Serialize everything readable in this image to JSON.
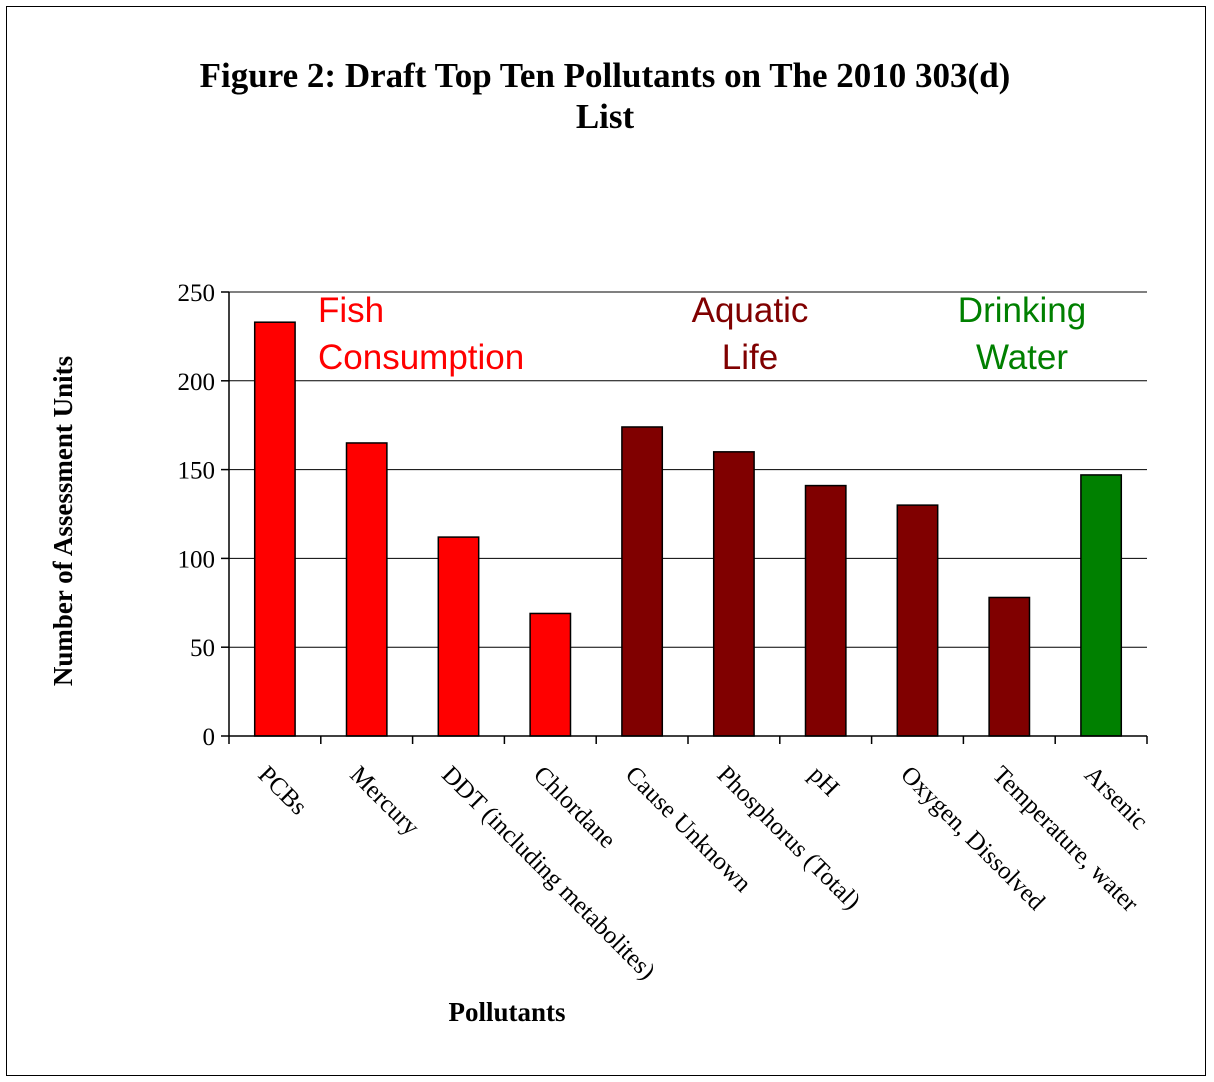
{
  "chart_data": {
    "type": "bar",
    "title_lines": [
      "Figure 2: Draft Top Ten Pollutants on The 2010 303(d)",
      "List"
    ],
    "xlabel": "Pollutants",
    "ylabel": "Number of Assessment Units",
    "ylim": [
      0,
      250
    ],
    "yticks": [
      0,
      50,
      100,
      150,
      200,
      250
    ],
    "grid": true,
    "categories": [
      "PCBs",
      "Mercury",
      "DDT (including metabolites)",
      "Chlordane",
      "Cause Unknown",
      "Phosphorus (Total)",
      "pH",
      "Oxygen, Dissolved",
      "Temperature, water",
      "Arsenic"
    ],
    "values": [
      233,
      165,
      112,
      69,
      174,
      160,
      141,
      130,
      78,
      147
    ],
    "bar_groups": [
      "fish",
      "fish",
      "fish",
      "fish",
      "aquatic",
      "aquatic",
      "aquatic",
      "aquatic",
      "aquatic",
      "drinking"
    ],
    "group_labels": [
      {
        "id": "fish",
        "lines": [
          "Fish",
          "Consumption"
        ],
        "color": "#ff0000"
      },
      {
        "id": "aquatic",
        "lines": [
          "Aquatic",
          "Life"
        ],
        "color": "#800000"
      },
      {
        "id": "drinking",
        "lines": [
          "Drinking",
          "Water"
        ],
        "color": "#008000"
      }
    ]
  }
}
